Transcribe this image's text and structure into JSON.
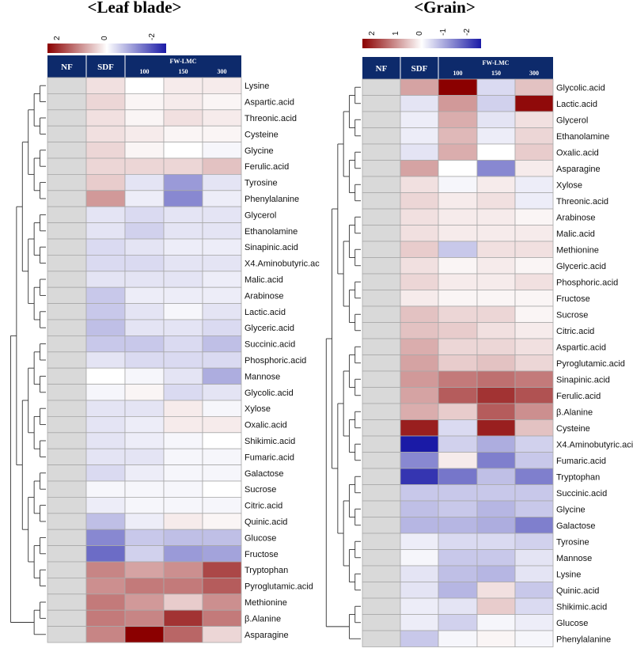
{
  "chart_data": [
    {
      "type": "heatmap",
      "title": "<Leaf blade>",
      "header": {
        "nf": "NF",
        "sdf": "SDF",
        "group": "FW-LMC",
        "doses": [
          "100",
          "150",
          "300"
        ]
      },
      "color_scale": {
        "ticks": [
          "2",
          "0",
          "-2"
        ],
        "min": -2.5,
        "max": 2.5,
        "high": "#8b0000",
        "mid": "#ffffff",
        "low": "#1a1aa6"
      },
      "rows": [
        "Lysine",
        "Aspartic.acid",
        "Threonic.acid",
        "Cysteine",
        "Glycine",
        "Ferulic.acid",
        "Tyrosine",
        "Phenylalanine",
        "Glycerol",
        "Ethanolamine",
        "Sinapinic.acid",
        "X4.Aminobutyric.ac",
        "Malic.acid",
        "Arabinose",
        "Lactic.acid",
        "Glyceric.acid",
        "Succinic.acid",
        "Phosphoric.acid",
        "Mannose",
        "Glycolic.acid",
        "Xylose",
        "Oxalic.acid",
        "Shikimic.acid",
        "Fumaric.acid",
        "Galactose",
        "Sucrose",
        "Citric.acid",
        "Quinic.acid",
        "Glucose",
        "Fructose",
        "Tryptophan",
        "Pyroglutamic.acid",
        "Methionine",
        "β.Alanine",
        "Asparagine"
      ],
      "values": [
        [
          0.3,
          0.0,
          0.2,
          0.2
        ],
        [
          0.4,
          0.1,
          0.2,
          0.1
        ],
        [
          0.3,
          0.1,
          0.3,
          0.2
        ],
        [
          0.3,
          0.2,
          0.1,
          0.1
        ],
        [
          0.4,
          0.1,
          0.0,
          -0.1
        ],
        [
          0.4,
          0.4,
          0.4,
          0.6
        ],
        [
          0.5,
          -0.3,
          -1.1,
          -0.3
        ],
        [
          1.0,
          -0.2,
          -1.3,
          -0.2
        ],
        [
          -0.3,
          -0.4,
          -0.3,
          -0.3
        ],
        [
          -0.3,
          -0.5,
          -0.3,
          -0.3
        ],
        [
          -0.4,
          -0.3,
          -0.2,
          -0.2
        ],
        [
          -0.4,
          -0.4,
          -0.3,
          -0.3
        ],
        [
          -0.3,
          -0.3,
          -0.3,
          -0.2
        ],
        [
          -0.6,
          -0.2,
          -0.2,
          -0.2
        ],
        [
          -0.6,
          -0.3,
          -0.1,
          -0.3
        ],
        [
          -0.7,
          -0.3,
          -0.3,
          -0.4
        ],
        [
          -0.6,
          -0.6,
          -0.4,
          -0.7
        ],
        [
          -0.3,
          -0.4,
          -0.4,
          -0.4
        ],
        [
          0.0,
          -0.1,
          -0.3,
          -0.9
        ],
        [
          -0.1,
          0.1,
          -0.4,
          -0.3
        ],
        [
          -0.3,
          -0.3,
          0.2,
          -0.1
        ],
        [
          -0.3,
          -0.2,
          0.2,
          0.2
        ],
        [
          -0.3,
          -0.2,
          -0.1,
          0.0
        ],
        [
          -0.3,
          -0.3,
          -0.1,
          -0.1
        ],
        [
          -0.4,
          -0.2,
          -0.1,
          -0.1
        ],
        [
          -0.1,
          -0.1,
          -0.1,
          0.0
        ],
        [
          -0.2,
          -0.1,
          -0.1,
          -0.1
        ],
        [
          -0.7,
          -0.2,
          0.2,
          0.1
        ],
        [
          -1.3,
          -0.6,
          -0.7,
          -0.7
        ],
        [
          -1.6,
          -0.5,
          -1.1,
          -1.0
        ],
        [
          1.2,
          0.9,
          1.1,
          1.8
        ],
        [
          1.1,
          1.3,
          1.3,
          1.6
        ],
        [
          1.3,
          1.0,
          0.5,
          1.1
        ],
        [
          1.3,
          1.2,
          2.0,
          1.3
        ],
        [
          1.2,
          2.5,
          1.5,
          0.4
        ]
      ]
    },
    {
      "type": "heatmap",
      "title": "<Grain>",
      "header": {
        "nf": "NF",
        "sdf": "SDF",
        "group": "FW-LMC",
        "doses": [
          "100",
          "150",
          "300"
        ]
      },
      "color_scale": {
        "ticks": [
          "2",
          "1",
          "0",
          "-1",
          "-2"
        ],
        "min": -2.5,
        "max": 2.5,
        "high": "#8b0000",
        "mid": "#ffffff",
        "low": "#1a1aa6"
      },
      "rows": [
        "Glycolic.acid",
        "Lactic.acid",
        "Glycerol",
        "Ethanolamine",
        "Oxalic.acid",
        "Asparagine",
        "Xylose",
        "Threonic.acid",
        "Arabinose",
        "Malic.acid",
        "Methionine",
        "Glyceric.acid",
        "Phosphoric.acid",
        "Fructose",
        "Sucrose",
        "Citric.acid",
        "Aspartic.acid",
        "Pyroglutamic.acid",
        "Sinapinic.acid",
        "Ferulic.acid",
        "β.Alanine",
        "Cysteine",
        "X4.Aminobutyric.acid",
        "Fumaric.acid",
        "Tryptophan",
        "Succinic.acid",
        "Glycine",
        "Galactose",
        "Tyrosine",
        "Mannose",
        "Lysine",
        "Quinic.acid",
        "Shikimic.acid",
        "Glucose",
        "Phenylalanine"
      ],
      "values": [
        [
          0.9,
          2.5,
          -0.4,
          0.6
        ],
        [
          -0.3,
          1.0,
          -0.5,
          2.4
        ],
        [
          -0.2,
          0.8,
          -0.3,
          0.3
        ],
        [
          -0.2,
          0.7,
          -0.2,
          0.4
        ],
        [
          -0.3,
          0.8,
          0.0,
          0.5
        ],
        [
          0.9,
          0.0,
          -1.3,
          0.2
        ],
        [
          0.3,
          -0.1,
          0.2,
          -0.2
        ],
        [
          0.4,
          0.2,
          0.3,
          -0.2
        ],
        [
          0.3,
          0.2,
          0.2,
          0.1
        ],
        [
          0.3,
          0.2,
          0.2,
          0.2
        ],
        [
          0.5,
          -0.6,
          0.3,
          0.3
        ],
        [
          0.3,
          0.1,
          0.2,
          0.1
        ],
        [
          0.4,
          0.2,
          0.2,
          0.3
        ],
        [
          0.2,
          0.1,
          0.1,
          0.1
        ],
        [
          0.6,
          0.4,
          0.4,
          0.1
        ],
        [
          0.6,
          0.5,
          0.3,
          0.2
        ],
        [
          0.8,
          0.4,
          0.4,
          0.3
        ],
        [
          0.9,
          0.5,
          0.6,
          0.4
        ],
        [
          1.0,
          1.3,
          1.4,
          1.3
        ],
        [
          0.9,
          1.6,
          2.0,
          1.7
        ],
        [
          0.8,
          0.5,
          1.6,
          1.1
        ],
        [
          2.2,
          -0.4,
          2.2,
          0.6
        ],
        [
          -2.6,
          -0.5,
          -0.9,
          -0.5
        ],
        [
          -1.3,
          0.2,
          -1.4,
          -0.6
        ],
        [
          -2.2,
          -1.5,
          -0.7,
          -1.4
        ],
        [
          -0.6,
          -0.6,
          -0.6,
          -0.6
        ],
        [
          -0.7,
          -0.6,
          -0.8,
          -0.6
        ],
        [
          -0.8,
          -0.8,
          -0.9,
          -1.4
        ],
        [
          -0.2,
          -0.4,
          -0.4,
          -0.5
        ],
        [
          -0.1,
          -0.6,
          -0.6,
          -0.3
        ],
        [
          -0.3,
          -0.7,
          -0.8,
          -0.3
        ],
        [
          -0.3,
          -0.8,
          0.3,
          -0.6
        ],
        [
          -0.2,
          -0.3,
          0.5,
          -0.4
        ],
        [
          -0.2,
          -0.5,
          -0.1,
          -0.2
        ],
        [
          -0.6,
          -0.1,
          0.1,
          -0.1
        ]
      ]
    }
  ]
}
